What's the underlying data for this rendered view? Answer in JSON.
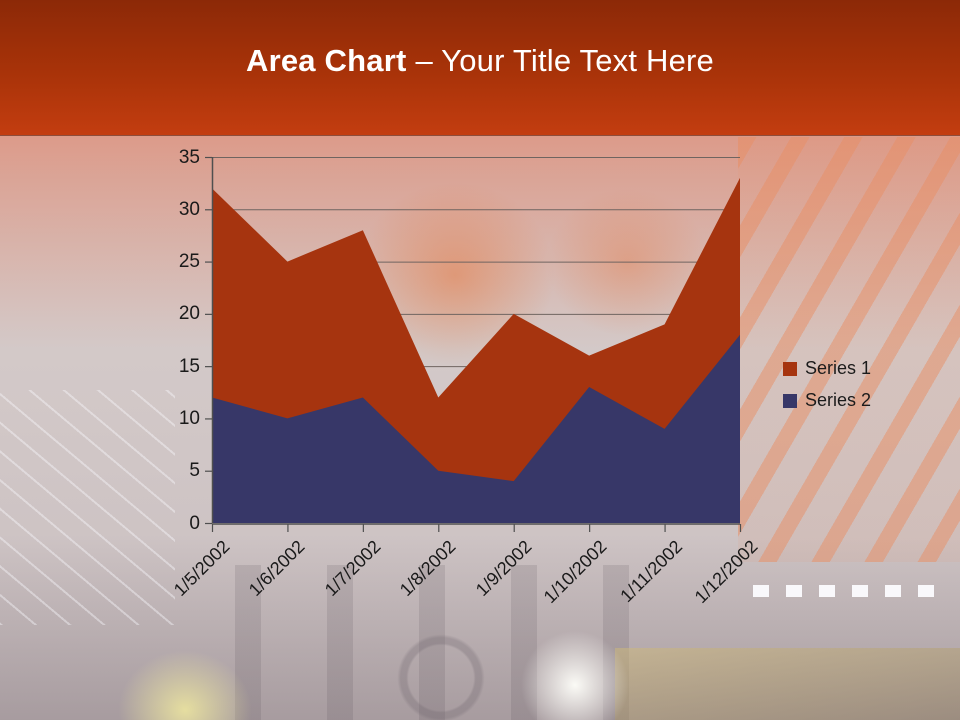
{
  "slide": {
    "title": {
      "bold": "Area Chart",
      "rest": "– Your Title Text Here"
    }
  },
  "colors": {
    "banner_top": "#8C2907",
    "banner_bottom": "#C33D10",
    "title_text": "#FFFFFF",
    "series1": "#A6340F",
    "series2": "#373768",
    "gridline": "#6F6460",
    "axis_line": "#4F4F4F",
    "axis_text": "#1A1A1A"
  },
  "chart_data": {
    "type": "area",
    "stacked": false,
    "title": "",
    "xlabel": "",
    "ylabel": "",
    "categories": [
      "1/5/2002",
      "1/6/2002",
      "1/7/2002",
      "1/8/2002",
      "1/9/2002",
      "1/10/2002",
      "1/11/2002",
      "1/12/2002"
    ],
    "series": [
      {
        "name": "Series 1",
        "color": "#A6340F",
        "values": [
          32,
          25,
          28,
          12,
          20,
          16,
          19,
          33
        ]
      },
      {
        "name": "Series 2",
        "color": "#373768",
        "values": [
          12,
          10,
          12,
          5,
          4,
          13,
          9,
          18
        ]
      }
    ],
    "ylim": [
      0,
      35
    ],
    "yticks": [
      0,
      5,
      10,
      15,
      20,
      25,
      30,
      35
    ],
    "grid": true,
    "legend_position": "right"
  }
}
